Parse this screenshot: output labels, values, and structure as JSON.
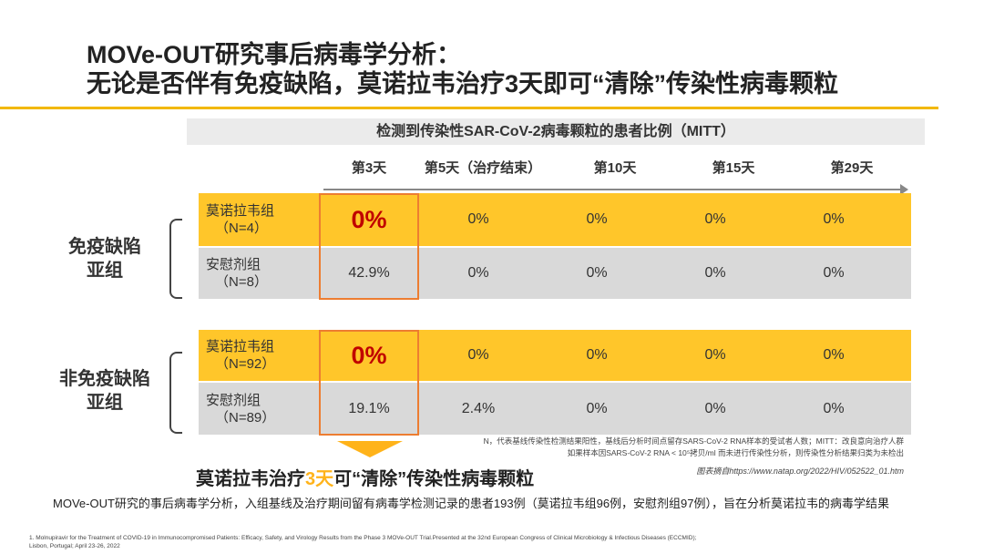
{
  "title": {
    "line1": "MOVe-OUT研究事后病毒学分析：",
    "line2": "无论是否伴有免疫缺陷，莫诺拉韦治疗3天即可“清除”传染性病毒颗粒"
  },
  "table": {
    "header": "检测到传染性SAR-CoV-2病毒颗粒的患者比例（MITT）",
    "columns": [
      "第3天",
      "第5天（治疗结束）",
      "第10天",
      "第15天",
      "第29天"
    ],
    "groups": [
      {
        "label_line1": "免疫缺陷",
        "label_line2": "亚组",
        "rows": [
          {
            "name": "莫诺拉韦组",
            "n": "（N=4）",
            "values": [
              "0%",
              "0%",
              "0%",
              "0%",
              "0%"
            ]
          },
          {
            "name": "安慰剂组",
            "n": "（N=8）",
            "values": [
              "42.9%",
              "0%",
              "0%",
              "0%",
              "0%"
            ]
          }
        ]
      },
      {
        "label_line1": "非免疫缺陷",
        "label_line2": "亚组",
        "rows": [
          {
            "name": "莫诺拉韦组",
            "n": "（N=92）",
            "values": [
              "0%",
              "0%",
              "0%",
              "0%",
              "0%"
            ]
          },
          {
            "name": "安慰剂组",
            "n": "（N=89）",
            "values": [
              "19.1%",
              "2.4%",
              "0%",
              "0%",
              "0%"
            ]
          }
        ]
      }
    ]
  },
  "note": {
    "line1": "N，代表基线传染性检测结果阳性，基线后分析时间点留存SARS-CoV-2 RNA样本的受试者人数；MITT：改良意向治疗人群",
    "line2": "如果样本因SARS-CoV-2 RNA < 10⁵拷贝/ml 而未进行传染性分析，则传染性分析结果归类为未检出"
  },
  "source": "图表摘自https://www.natap.org/2022/HIV/052522_01.htm",
  "conclusion": {
    "pre": "莫诺拉韦治疗",
    "highlight": "3天",
    "post": "可“清除”传染性病毒颗粒"
  },
  "study": "MOVe-OUT研究的事后病毒学分析，入组基线及治疗期间留有病毒学检测记录的患者193例（莫诺拉韦组96例，安慰剂组97例），旨在分析莫诺拉韦的病毒学结果",
  "reference": {
    "line1": "1.      Molnupiravir for the Treatment of COVID-19 in Immunocompromised Patients: Efficacy, Safety,  and Virology Results from the Phase 3 MOVe-OUT Trial.Presented at the 32nd European Congress of Clinical Microbiology & Infectious Diseases (ECCMID);",
    "line2": "Lisbon, Portugal;  April 23-26, 2022"
  },
  "colors": {
    "accent": "#ffc62a",
    "highlight": "#c00000",
    "box": "#ed7d31"
  }
}
